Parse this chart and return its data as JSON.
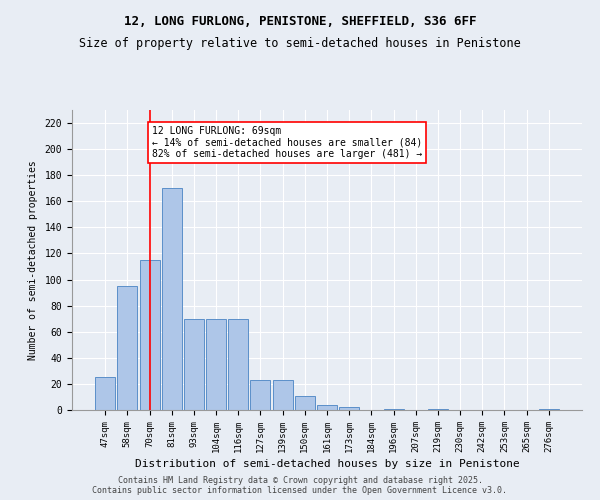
{
  "title1": "12, LONG FURLONG, PENISTONE, SHEFFIELD, S36 6FF",
  "title2": "Size of property relative to semi-detached houses in Penistone",
  "xlabel": "Distribution of semi-detached houses by size in Penistone",
  "ylabel": "Number of semi-detached properties",
  "categories": [
    "47sqm",
    "58sqm",
    "70sqm",
    "81sqm",
    "93sqm",
    "104sqm",
    "116sqm",
    "127sqm",
    "139sqm",
    "150sqm",
    "161sqm",
    "173sqm",
    "184sqm",
    "196sqm",
    "207sqm",
    "219sqm",
    "230sqm",
    "242sqm",
    "253sqm",
    "265sqm",
    "276sqm"
  ],
  "values": [
    25,
    95,
    115,
    170,
    70,
    70,
    70,
    23,
    23,
    11,
    4,
    2,
    0,
    1,
    0,
    1,
    0,
    0,
    0,
    0,
    1
  ],
  "bar_color": "#aec6e8",
  "bar_edge_color": "#5b8fc9",
  "vline_x": 2,
  "vline_color": "red",
  "annotation_text": "12 LONG FURLONG: 69sqm\n← 14% of semi-detached houses are smaller (84)\n82% of semi-detached houses are larger (481) →",
  "annotation_box_color": "white",
  "annotation_box_edge": "red",
  "background_color": "#e8edf4",
  "plot_bg_color": "#e8edf4",
  "title1_fontsize": 9,
  "title2_fontsize": 8.5,
  "footer_text": "Contains HM Land Registry data © Crown copyright and database right 2025.\nContains public sector information licensed under the Open Government Licence v3.0.",
  "ylim": [
    0,
    230
  ],
  "yticks": [
    0,
    20,
    40,
    60,
    80,
    100,
    120,
    140,
    160,
    180,
    200,
    220
  ]
}
